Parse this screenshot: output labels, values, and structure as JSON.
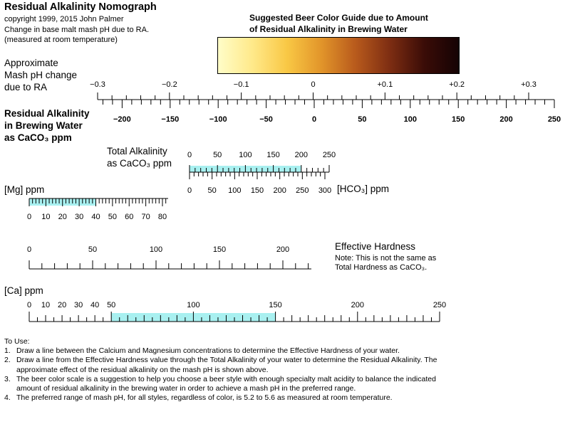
{
  "header": {
    "title": "Residual Alkalinity Nomograph",
    "copyright": "copyright 1999, 2015 John Palmer",
    "subtitle1": "Change in base malt mash pH due to RA.",
    "subtitle2": "(measured at room temperature)"
  },
  "beer_guide": {
    "line1": "Suggested Beer Color Guide due to Amount",
    "line2": "of Residual Alkalinity in Brewing Water",
    "colors": [
      "#fffdc8",
      "#ffe98a",
      "#f9c845",
      "#e2952a",
      "#b85a1c",
      "#7d2d12",
      "#3a0c07",
      "#150304"
    ]
  },
  "ph_scale": {
    "label1": "Approximate",
    "label2": "Mash pH change",
    "label3": "due to RA",
    "ticks": [
      "−0.3",
      "−0.2",
      "−0.1",
      "0",
      "+0.1",
      "+0.2",
      "+0.3"
    ]
  },
  "ra_scale": {
    "label1": "Residual Alkalinity",
    "label2": "in Brewing Water",
    "label3": "as CaCO₃ ppm",
    "ticks": [
      "−200",
      "−150",
      "−100",
      "−50",
      "0",
      "50",
      "100",
      "150",
      "200",
      "250"
    ]
  },
  "total_alk": {
    "label1": "Total Alkalinity",
    "label2": "as CaCO₃ ppm",
    "top_ticks": [
      "0",
      "50",
      "100",
      "150",
      "200",
      "250"
    ],
    "bottom_ticks": [
      "0",
      "50",
      "100",
      "150",
      "200",
      "250",
      "300"
    ],
    "hco3_label": "[HCO₃] ppm",
    "highlight": [
      0,
      200
    ]
  },
  "mg": {
    "label": "[Mg] ppm",
    "ticks": [
      "0",
      "10",
      "20",
      "30",
      "40",
      "50",
      "60",
      "70",
      "80"
    ],
    "highlight": [
      0,
      40
    ]
  },
  "eff_hardness": {
    "label": "Effective Hardness",
    "note1": "Note: This is not the same as",
    "note2": "Total Hardness as CaCO₃.",
    "ticks": [
      "0",
      "50",
      "100",
      "150",
      "200"
    ]
  },
  "ca": {
    "label": "[Ca] ppm",
    "ticks": [
      "0",
      "10",
      "20",
      "30",
      "40",
      "50",
      "100",
      "150",
      "200",
      "250"
    ],
    "highlight": [
      50,
      150
    ]
  },
  "instructions": {
    "heading": "To Use:",
    "items": [
      {
        "num": "1.",
        "text": "Draw a line between the Calcium and Magnesium concentrations to determine the Effective Hardness of your water."
      },
      {
        "num": "2.",
        "text": "Draw a line from the Effective Hardness value through the Total Alkalinity of your water to determine the Residual Alkalinity. The approximate effect of the residual alkalinity on the mash pH is shown above."
      },
      {
        "num": "3.",
        "text": "The beer color scale is a suggestion to help you choose a beer style with enough specialty malt acidity to balance the indicated amount of residual alkalinity in the brewing water in order to achieve a mash pH in the preferred range."
      },
      {
        "num": "4.",
        "text": "The preferred range of mash pH, for all styles, regardless of color, is 5.2 to 5.6 as measured at room temperature."
      }
    ]
  },
  "highlight_color": "#a8f0f0"
}
